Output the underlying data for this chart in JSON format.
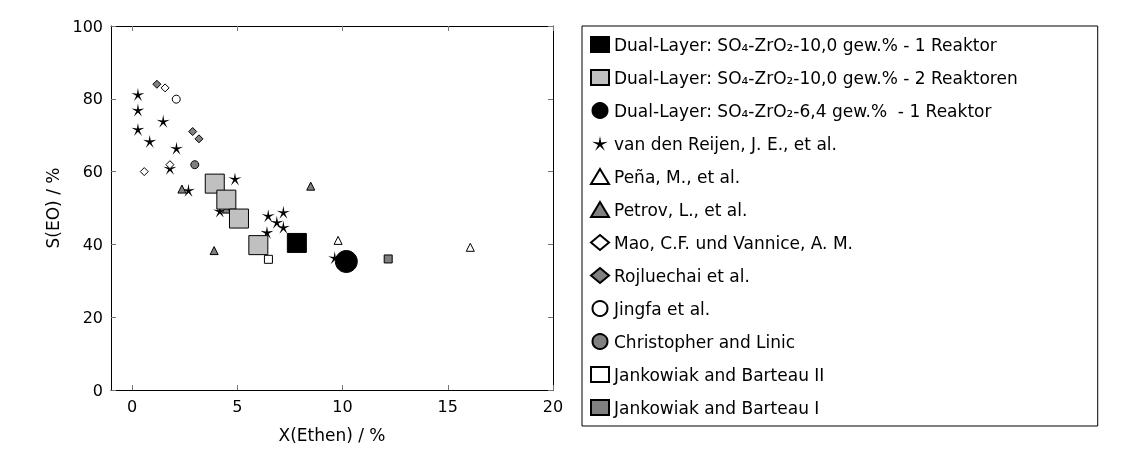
{
  "chart_data": {
    "type": "scatter",
    "xlabel": "X(Ethen) / %",
    "ylabel": "S(EO) / %",
    "xlim": [
      -1,
      20
    ],
    "xticks": [
      0,
      5,
      10,
      15,
      20
    ],
    "ylim": [
      0,
      100
    ],
    "yticks": [
      0,
      20,
      40,
      60,
      80,
      100
    ],
    "grid": false,
    "legend": "right",
    "series": [
      {
        "name": "Dual-Layer: SO₄-ZrO₂-10,0 gew.% - 1 Reaktor",
        "color": "#000000",
        "marker": "square",
        "x": [
          7.83
        ],
        "values": [
          40.4
        ]
      },
      {
        "name": "Dual-Layer: SO₄-ZrO₂-10,0 gew.% - 2 Reaktoren",
        "color": "#c0c0c0",
        "marker": "square",
        "x": [
          3.93,
          4.48,
          5.08,
          6.0
        ],
        "values": [
          56.7,
          52.3,
          47.1,
          39.8
        ]
      },
      {
        "name": "Dual-Layer: SO₄-ZrO₂-6,4 gew.%  - 1 Reaktor",
        "color": "#000000",
        "marker": "circle",
        "x": [
          10.18
        ],
        "values": [
          35.3
        ]
      },
      {
        "name": "van den Reijen, J. E., et al.",
        "color": "#000000",
        "marker": "star",
        "x": [
          0.28,
          0.28,
          0.28,
          0.84,
          1.48,
          2.11,
          1.8,
          2.68,
          4.89,
          4.17,
          6.47,
          6.41,
          6.88,
          7.19,
          7.19,
          9.63
        ],
        "values": [
          81.2,
          76.9,
          71.6,
          68.3,
          73.8,
          66.4,
          60.9,
          54.9,
          58,
          49.2,
          47.9,
          43.3,
          46.1,
          48.8,
          44.7,
          36.3
        ]
      },
      {
        "name": "Peña, M., et al.",
        "color": "#ffffff",
        "marker": "triangle",
        "x": [
          9.79,
          16.07
        ],
        "values": [
          41.1,
          39.2
        ]
      },
      {
        "name": "Petrov, L., et al.",
        "color": "#808080",
        "marker": "triangle",
        "x": [
          8.49,
          2.37,
          4.48,
          3.9
        ],
        "values": [
          56,
          55.2,
          49.7,
          38.3
        ]
      },
      {
        "name": "Mao, C.F. und Vannice, A. M.",
        "color": "#ffffff",
        "marker": "diamond",
        "x": [
          0.58,
          1.57,
          1.8
        ],
        "values": [
          60,
          83,
          61.9
        ]
      },
      {
        "name": "Rojluechai et al.",
        "color": "#808080",
        "marker": "diamond",
        "x": [
          1.18,
          2.88,
          3.18
        ],
        "values": [
          84,
          71,
          69
        ]
      },
      {
        "name": "Jingfa et al.",
        "color": "#ffffff",
        "marker": "circle",
        "x": [
          2.1
        ],
        "values": [
          79.9
        ]
      },
      {
        "name": "Christopher and Linic",
        "color": "#808080",
        "marker": "circle",
        "x": [
          2.98
        ],
        "values": [
          61.9
        ]
      },
      {
        "name": "Jankowiak and Barteau II",
        "color": "#ffffff",
        "marker": "square",
        "x": [
          6.48
        ],
        "values": [
          35.9
        ]
      },
      {
        "name": "Jankowiak and Barteau I",
        "color": "#808080",
        "marker": "square",
        "x": [
          12.17
        ],
        "values": [
          36
        ]
      }
    ]
  }
}
